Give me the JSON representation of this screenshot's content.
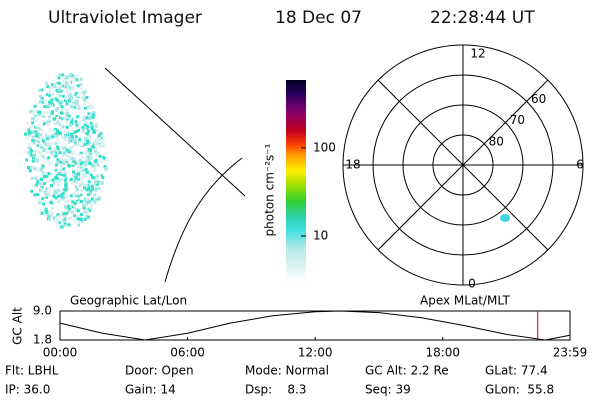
{
  "header": {
    "title": "Ultraviolet Imager",
    "date": "18 Dec 07",
    "time": "22:28:44 UT"
  },
  "colorbar": {
    "label": "photon cm⁻²s⁻¹",
    "log": true,
    "lim": [
      3,
      590
    ],
    "ticks": [
      10,
      100
    ]
  },
  "polar": {
    "rings": [
      80,
      70,
      60
    ],
    "mlt_labels": {
      "top": "12",
      "bottom": "0",
      "left": "18",
      "right": "6"
    }
  },
  "altitude": {
    "left_title": "Geographic Lat/Lon",
    "right_title": "Apex MLat/MLT",
    "ylabel": "GC Alt",
    "xlim": [
      0,
      1439
    ],
    "ylim": [
      1.8,
      9.0
    ],
    "xticks": [
      {
        "value": 0,
        "label": "00:00"
      },
      {
        "value": 360,
        "label": "06:00"
      },
      {
        "value": 720,
        "label": "12:00"
      },
      {
        "value": 1080,
        "label": "18:00"
      },
      {
        "value": 1439,
        "label": "23:59"
      }
    ],
    "yticks": [
      {
        "value": 1.8,
        "label": "1.8"
      },
      {
        "value": 9.0,
        "label": "9.0"
      }
    ],
    "x": [
      0,
      120,
      240,
      360,
      480,
      600,
      720,
      790,
      900,
      1020,
      1140,
      1260,
      1369,
      1439
    ],
    "values": [
      6.0,
      3.5,
      1.8,
      3.5,
      6.0,
      7.8,
      8.8,
      9.0,
      8.6,
      7.3,
      5.4,
      3.2,
      1.8,
      3.0
    ],
    "marker": 1348
  },
  "info": {
    "rows": [
      [
        "Flt: LBHL",
        "Door: Open",
        "Mode: Normal",
        "GC Alt: 2.2 Re",
        "GLat: 77.4"
      ],
      [
        "IP: 36.0",
        "Gain: 14",
        "Dsp:    8.3",
        "Seq: 39",
        "GLon:  55.8"
      ]
    ]
  }
}
